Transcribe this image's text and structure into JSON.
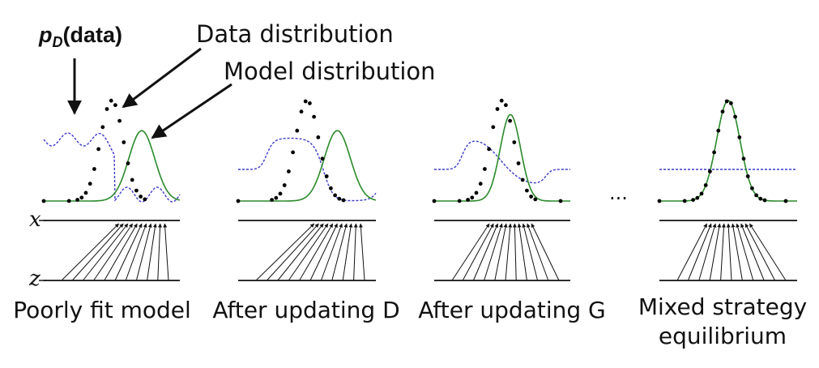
{
  "annotations": {
    "pd_symbol": "p",
    "pd_subscript": "D",
    "pd_arg": "(data)",
    "data_distribution": "Data distribution",
    "model_distribution": "Model distribution"
  },
  "axes": {
    "x_label": "x",
    "z_label": "z"
  },
  "ellipsis": "...",
  "panels": [
    {
      "caption_lines": [
        "Poorly fit model"
      ],
      "stage": "poor"
    },
    {
      "caption_lines": [
        "After updating D"
      ],
      "stage": "afterD"
    },
    {
      "caption_lines": [
        "After updating G"
      ],
      "stage": "afterG"
    },
    {
      "caption_lines": [
        "Mixed strategy",
        "equilibrium"
      ],
      "stage": "equilibrium"
    }
  ],
  "colors": {
    "data": "#000000",
    "model": "#2a8a2a",
    "discriminator": "#3a3acc"
  }
}
